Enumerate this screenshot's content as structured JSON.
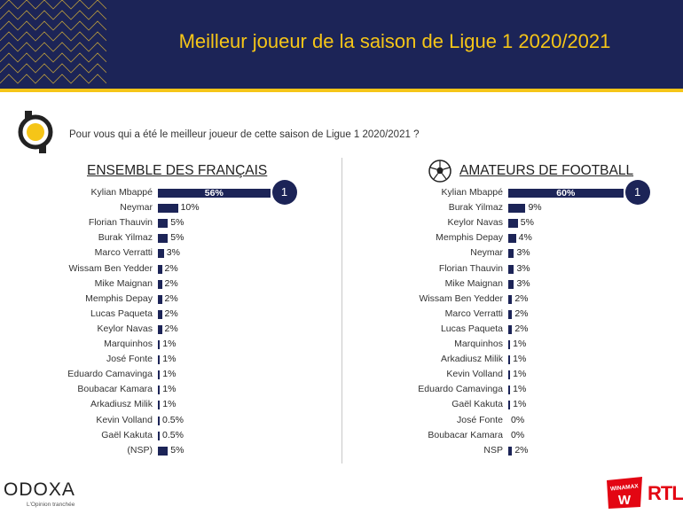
{
  "header": {
    "title": "Meilleur joueur de la saison de Ligue 1 2020/2021"
  },
  "question": "Pour vous qui a été le meilleur joueur de cette saison de Ligue 1 2020/2021 ?",
  "colors": {
    "navy": "#1c2457",
    "gold": "#f5c518",
    "rtl_red": "#e30613"
  },
  "chart_data": [
    {
      "type": "bar",
      "orientation": "horizontal",
      "title": "ENSEMBLE DES FRANÇAIS",
      "categories": [
        "Kylian Mbappé",
        "Neymar",
        "Florian Thauvin",
        "Burak Yilmaz",
        "Marco Verratti",
        "Wissam Ben Yedder",
        "Mike Maignan",
        "Memphis Depay",
        "Lucas Paqueta",
        "Keylor Navas",
        "Marquinhos",
        "José Fonte",
        "Eduardo Camavinga",
        "Boubacar Kamara",
        "Arkadiusz Milik",
        "Kevin Volland",
        "Gaël Kakuta",
        "(NSP)"
      ],
      "values": [
        56,
        10,
        5,
        5,
        3,
        2,
        2,
        2,
        2,
        2,
        1,
        1,
        1,
        1,
        1,
        0.5,
        0.5,
        5
      ],
      "value_labels": [
        "56%",
        "10%",
        "5%",
        "5%",
        "3%",
        "2%",
        "2%",
        "2%",
        "2%",
        "2%",
        "1%",
        "1%",
        "1%",
        "1%",
        "1%",
        "0.5%",
        "0.5%",
        "5%"
      ],
      "rank_badge": "1"
    },
    {
      "type": "bar",
      "orientation": "horizontal",
      "title": "AMATEURS DE FOOTBALL",
      "categories": [
        "Kylian Mbappé",
        "Burak Yilmaz",
        "Keylor Navas",
        "Memphis Depay",
        "Neymar",
        "Florian Thauvin",
        "Mike Maignan",
        "Wissam Ben Yedder",
        "Marco Verratti",
        "Lucas Paqueta",
        "Marquinhos",
        "Arkadiusz Milik",
        "Kevin Volland",
        "Eduardo Camavinga",
        "Gaël Kakuta",
        "José Fonte",
        "Boubacar Kamara",
        "NSP"
      ],
      "values": [
        60,
        9,
        5,
        4,
        3,
        3,
        3,
        2,
        2,
        2,
        1,
        1,
        1,
        1,
        1,
        0,
        0,
        2
      ],
      "value_labels": [
        "60%",
        "9%",
        "5%",
        "4%",
        "3%",
        "3%",
        "3%",
        "2%",
        "2%",
        "2%",
        "1%",
        "1%",
        "1%",
        "1%",
        "1%",
        "0%",
        "0%",
        "2%"
      ],
      "rank_badge": "1"
    }
  ],
  "footer": {
    "brand": "ODOXA",
    "tagline": "L'Opinion tranchée",
    "partner1": "WINAMAX",
    "partner2": "RTL"
  }
}
